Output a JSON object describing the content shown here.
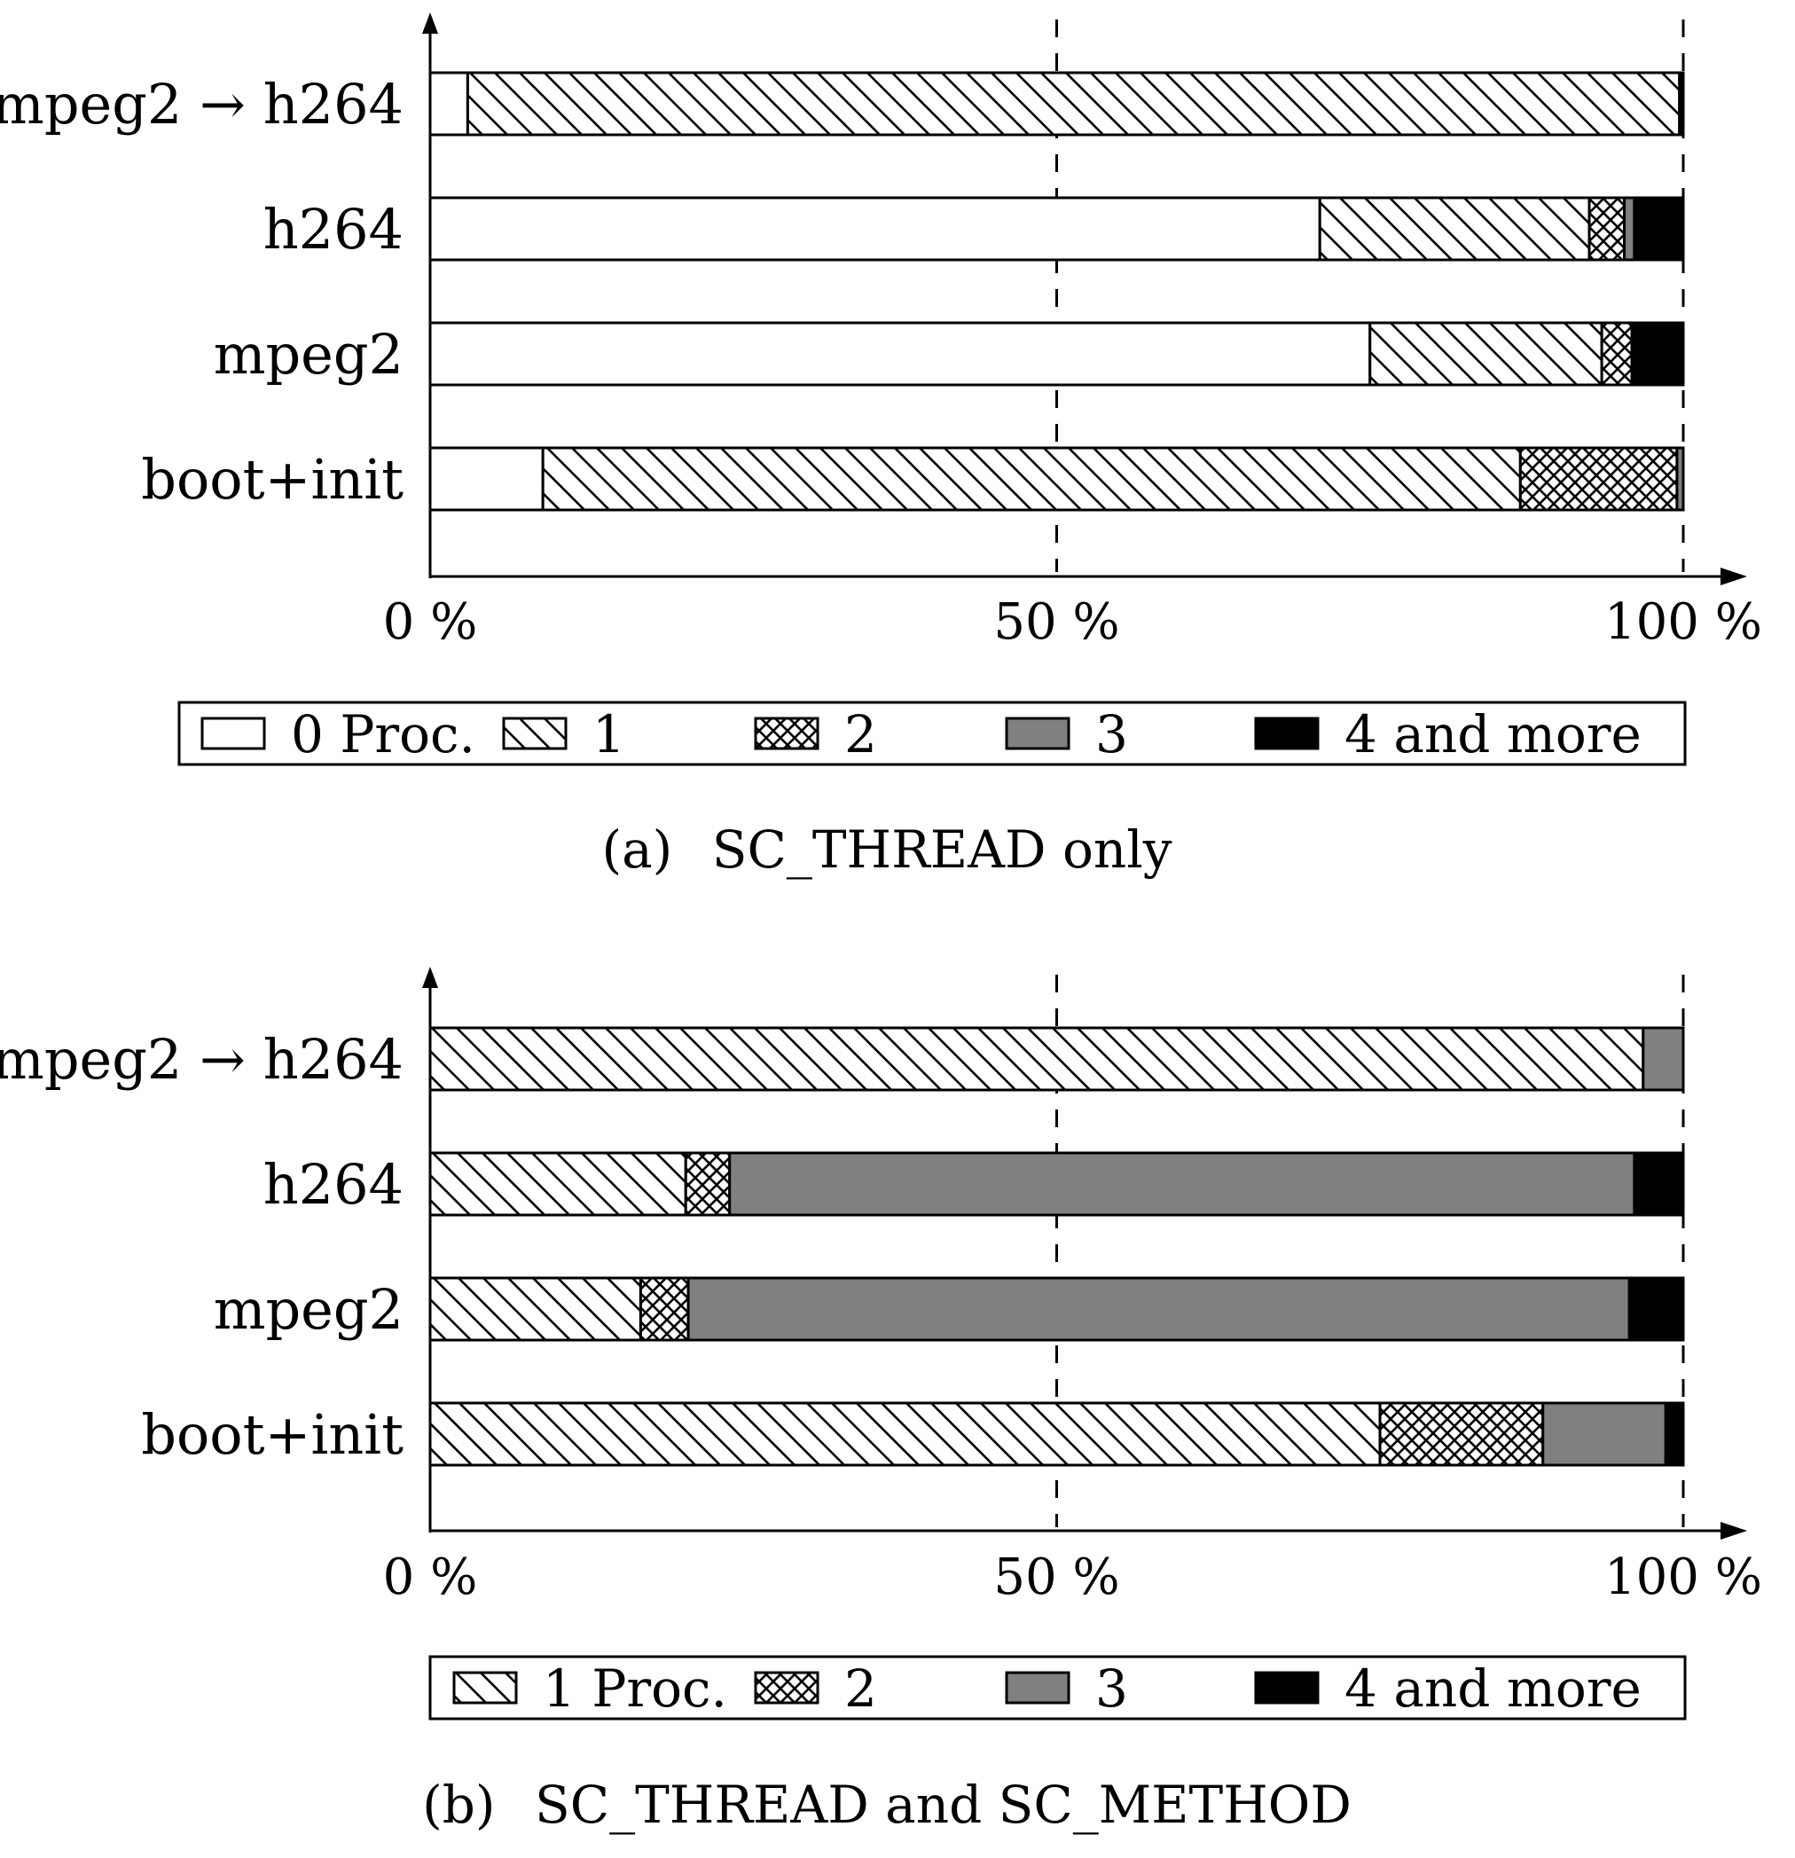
{
  "chart_data": [
    {
      "type": "bar",
      "stacked": true,
      "orientation": "horizontal",
      "caption_tag": "(a)",
      "title": "SC_THREAD only",
      "categories": [
        "mpeg2 → h264",
        "h264",
        "mpeg2",
        "boot+init"
      ],
      "xlim": [
        0,
        100
      ],
      "x_ticks": [
        "0 %",
        "50 %",
        "100 %"
      ],
      "x_tick_values": [
        0,
        50,
        100
      ],
      "legend_position": "bottom",
      "series": [
        {
          "name": "0 Proc.",
          "fill": "white",
          "values": [
            3,
            71,
            75,
            9
          ]
        },
        {
          "name": "1",
          "fill": "hatch",
          "values": [
            96.7,
            21.5,
            18.5,
            78
          ]
        },
        {
          "name": "2",
          "fill": "crosshatch",
          "values": [
            0,
            2.8,
            2.4,
            12.5
          ]
        },
        {
          "name": "3",
          "fill": "gray",
          "values": [
            0,
            0.8,
            0,
            0.5
          ]
        },
        {
          "name": "4 and more",
          "fill": "black",
          "values": [
            0.3,
            3.9,
            4.1,
            0
          ]
        }
      ]
    },
    {
      "type": "bar",
      "stacked": true,
      "orientation": "horizontal",
      "caption_tag": "(b)",
      "title": "SC_THREAD and SC_METHOD",
      "categories": [
        "mpeg2 → h264",
        "h264",
        "mpeg2",
        "boot+init"
      ],
      "xlim": [
        0,
        100
      ],
      "x_ticks": [
        "0 %",
        "50 %",
        "100 %"
      ],
      "x_tick_values": [
        0,
        50,
        100
      ],
      "legend_position": "bottom",
      "series": [
        {
          "name": "1 Proc.",
          "fill": "hatch",
          "values": [
            96.8,
            20.4,
            16.8,
            75.8
          ]
        },
        {
          "name": "2",
          "fill": "crosshatch",
          "values": [
            0,
            3.5,
            3.8,
            13.0
          ]
        },
        {
          "name": "3",
          "fill": "gray",
          "values": [
            3.2,
            72.2,
            75.1,
            9.8
          ]
        },
        {
          "name": "4 and more",
          "fill": "black",
          "values": [
            0,
            3.9,
            4.3,
            1.4
          ]
        }
      ]
    }
  ],
  "colors": {
    "gray": "#808080",
    "black": "#000000",
    "white": "#ffffff"
  }
}
